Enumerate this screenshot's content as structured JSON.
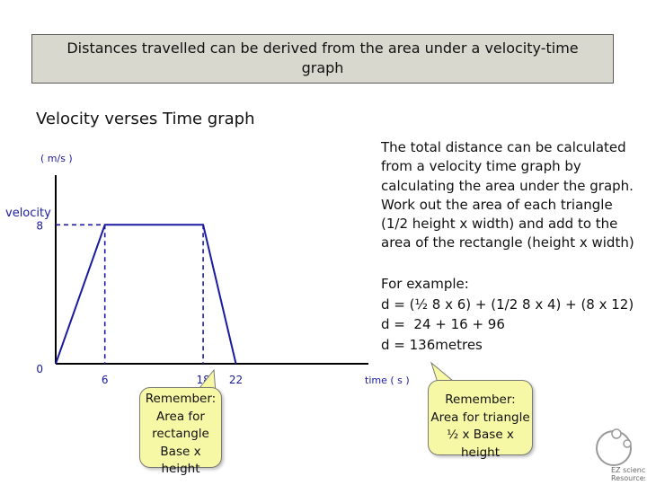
{
  "title": {
    "line1": "Distances travelled can be derived from the area under a velocity-time",
    "line2": "graph"
  },
  "subtitle": "Velocity verses Time graph",
  "explanation": [
    "The total distance can be calculated",
    "from a velocity time graph by",
    "calculating the area under the graph.",
    "Work out the area of each triangle",
    "(1/2 height x width) and add to the",
    "area of the rectangle (height x width)"
  ],
  "example": [
    "For example:",
    "d = (½ 8 x 6) + (1/2 8 x 4) + (8 x 12)",
    "d =  24 + 16 + 96",
    "d = 136metres"
  ],
  "callout_rectangle": [
    "Remember:",
    "Area for",
    "rectangle",
    "Base x height"
  ],
  "callout_triangle": [
    "Remember:",
    "Area for triangle",
    "½ x Base x height"
  ],
  "logo_text": [
    "EZ science",
    "Resources"
  ],
  "colors": {
    "line": "#1a1aa0",
    "dashed": "#1a1aa0",
    "axis": "#000000",
    "tick_label": "#1a1aa0",
    "callout_fill": "#f7f8a6"
  },
  "chart_data": {
    "type": "line",
    "xlabel": "time ( s )",
    "ylabel_unit": "( m/s )",
    "ylabel": "velocity",
    "x": [
      0,
      6,
      18,
      22
    ],
    "y": [
      0,
      8,
      8,
      0
    ],
    "x_ticks": [
      "6",
      "18",
      "22"
    ],
    "y_ticks": [
      "8",
      "0"
    ],
    "x_tick_values": [
      6,
      18,
      22
    ],
    "y_tick_values": [
      8,
      0
    ],
    "xlim": [
      0,
      36
    ],
    "ylim": [
      0,
      12
    ]
  }
}
